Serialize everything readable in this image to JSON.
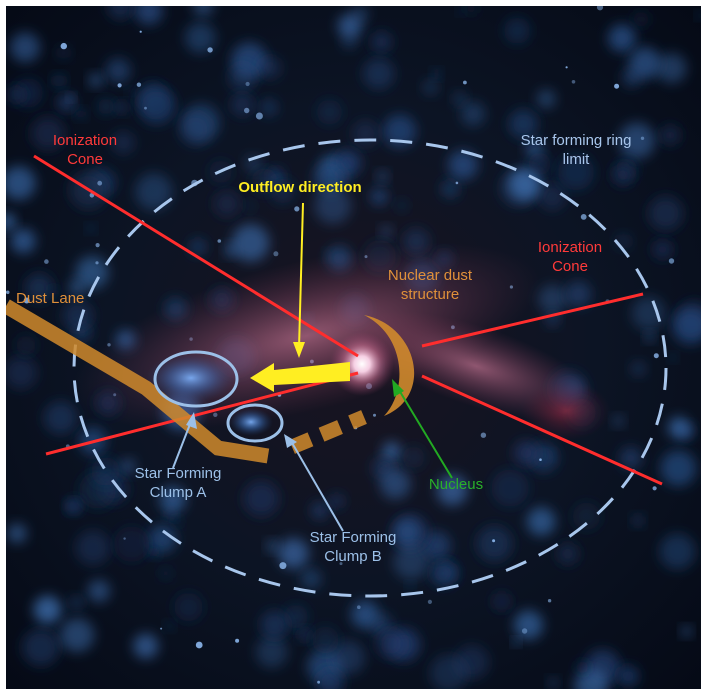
{
  "annotations": {
    "ionization_cone_left": [
      "Ionization",
      "Cone"
    ],
    "ionization_cone_right": [
      "Ionization",
      "Cone"
    ],
    "star_forming_ring": [
      "Star forming ring",
      "limit"
    ],
    "outflow_direction": "Outflow direction",
    "nuclear_dust": [
      "Nuclear dust",
      "structure"
    ],
    "dust_lane": "Dust Lane",
    "clump_a": [
      "Star Forming",
      "Clump A"
    ],
    "clump_b": [
      "Star Forming",
      "Clump B"
    ],
    "nucleus": "Nucleus"
  },
  "colors": {
    "ionization": "#ff2d2d",
    "ring": "#a8c6ec",
    "outflow": "#ffee22",
    "dust": "#d08a2c",
    "clump": "#9cc0e8",
    "nucleus": "#22aa22"
  }
}
